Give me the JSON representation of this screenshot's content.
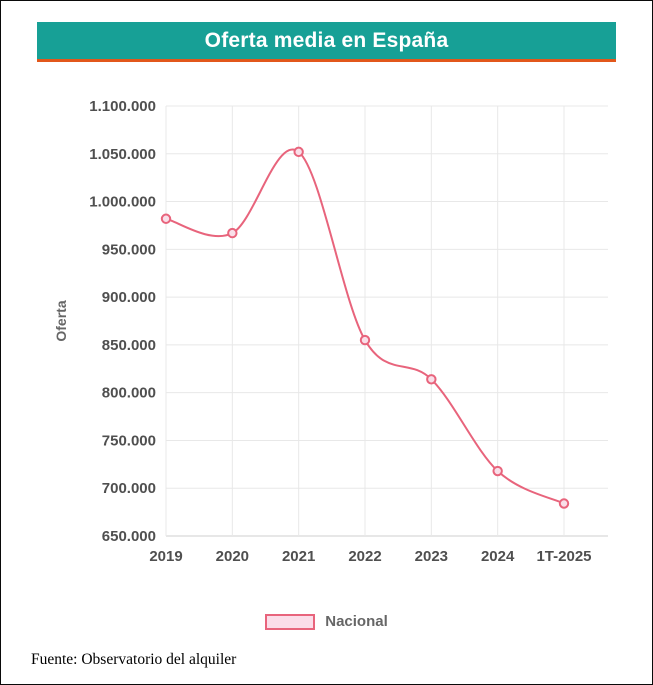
{
  "header": {
    "title": "Oferta media en España",
    "banner_color": "#17a096",
    "underline_color": "#e2571b"
  },
  "chart_data": {
    "type": "line",
    "title": "Oferta media en España",
    "categories": [
      "2019",
      "2020",
      "2021",
      "2022",
      "2023",
      "2024",
      "1T-2025"
    ],
    "series": [
      {
        "name": "Nacional",
        "values": [
          982000,
          967000,
          1052000,
          855000,
          814000,
          718000,
          684000
        ]
      }
    ],
    "xlabel": "",
    "ylabel": "Oferta",
    "ylim": [
      650000,
      1100000
    ],
    "y_tick_step": 50000,
    "grid": true,
    "legend_position": "bottom",
    "line_color": "#e8647c",
    "point_fill": "#f9dfe9",
    "grid_color": "#e8e8e8",
    "axis_line_color": "#cfcfcf",
    "tick_color": "#4f4f4f"
  },
  "legend": {
    "label": "Nacional"
  },
  "footer": {
    "source": "Fuente: Observatorio del alquiler"
  }
}
